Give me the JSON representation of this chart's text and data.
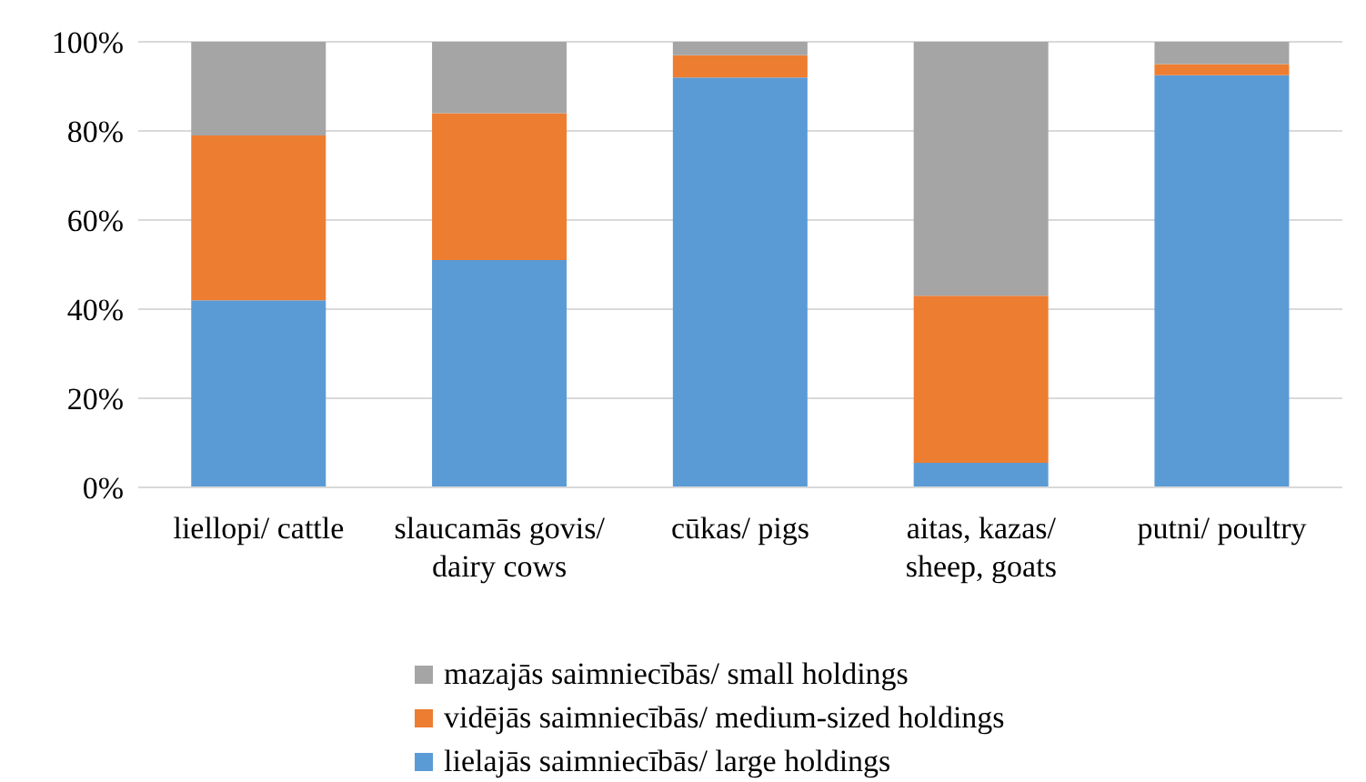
{
  "chart_data": {
    "type": "bar",
    "stacked": true,
    "categories": [
      "liellopi/ cattle",
      "slaucamās govis/ dairy cows",
      "cūkas/ pigs",
      "aitas, kazas/ sheep, goats",
      "putni/ poultry"
    ],
    "series": [
      {
        "name": "lielajās saimniecībās/ large holdings",
        "color": "#5b9bd5",
        "values": [
          42,
          51,
          92,
          5.5,
          92.5
        ]
      },
      {
        "name": "vidējās saimniecībās/ medium-sized holdings",
        "color": "#ed7d31",
        "values": [
          37,
          33,
          5,
          37.5,
          2.5
        ]
      },
      {
        "name": "mazajās saimniecībās/ small holdings",
        "color": "#a5a5a5",
        "values": [
          21,
          16,
          3,
          57,
          5
        ]
      }
    ],
    "ylim": [
      0,
      100
    ],
    "yticks": [
      {
        "value": 0,
        "label": "0%"
      },
      {
        "value": 20,
        "label": "20%"
      },
      {
        "value": 40,
        "label": "40%"
      },
      {
        "value": 60,
        "label": "60%"
      },
      {
        "value": 80,
        "label": "80%"
      },
      {
        "value": 100,
        "label": "100%"
      }
    ],
    "grid": "y",
    "legend": "bottom"
  }
}
